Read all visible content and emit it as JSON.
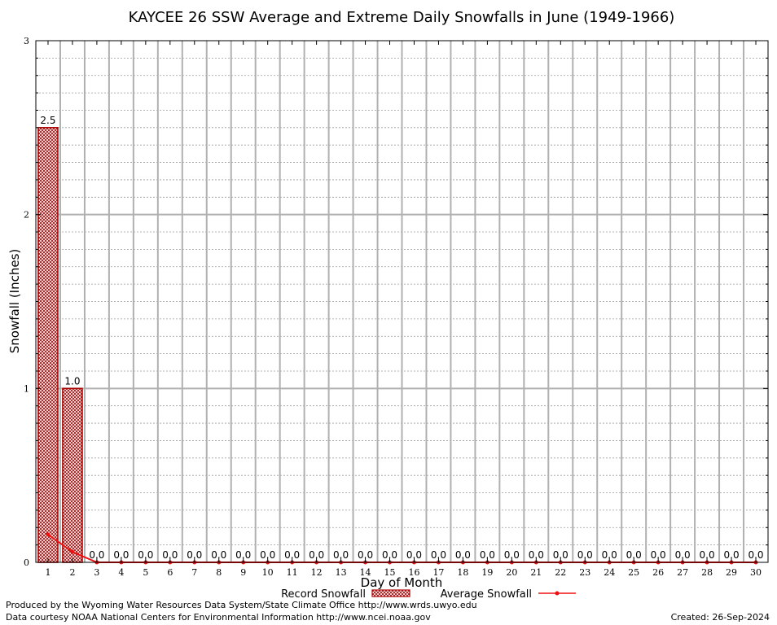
{
  "chart_data": {
    "type": "bar",
    "title": "KAYCEE 26 SSW Average and Extreme Daily Snowfalls in June (1949-1966)",
    "xlabel": "Day of Month",
    "ylabel": "Snowfall (Inches)",
    "ylim": [
      0,
      3
    ],
    "y_ticks": [
      "0",
      "1",
      "2",
      "3"
    ],
    "y_minor_step": 0.1,
    "grid": true,
    "categories": [
      "1",
      "2",
      "3",
      "4",
      "5",
      "6",
      "7",
      "8",
      "9",
      "10",
      "11",
      "12",
      "13",
      "14",
      "15",
      "16",
      "17",
      "18",
      "19",
      "20",
      "21",
      "22",
      "23",
      "24",
      "25",
      "26",
      "27",
      "28",
      "29",
      "30"
    ],
    "series": [
      {
        "name": "Record Snowfall",
        "type": "bar",
        "color": "#aa0000",
        "values": [
          2.5,
          1.0,
          0.0,
          0.0,
          0.0,
          0.0,
          0.0,
          0.0,
          0.0,
          0.0,
          0.0,
          0.0,
          0.0,
          0.0,
          0.0,
          0.0,
          0.0,
          0.0,
          0.0,
          0.0,
          0.0,
          0.0,
          0.0,
          0.0,
          0.0,
          0.0,
          0.0,
          0.0,
          0.0,
          0.0
        ],
        "labels": [
          "2.5",
          "1.0",
          "0.0",
          "0.0",
          "0.0",
          "0.0",
          "0.0",
          "0.0",
          "0.0",
          "0.0",
          "0.0",
          "0.0",
          "0.0",
          "0.0",
          "0.0",
          "0.0",
          "0.0",
          "0.0",
          "0.0",
          "0.0",
          "0.0",
          "0.0",
          "0.0",
          "0.0",
          "0.0",
          "0.0",
          "0.0",
          "0.0",
          "0.0",
          "0.0"
        ]
      },
      {
        "name": "Average Snowfall",
        "type": "line",
        "color": "#ee1111",
        "values": [
          0.16,
          0.06,
          0.0,
          0.0,
          0.0,
          0.0,
          0.0,
          0.0,
          0.0,
          0.0,
          0.0,
          0.0,
          0.0,
          0.0,
          0.0,
          0.0,
          0.0,
          0.0,
          0.0,
          0.0,
          0.0,
          0.0,
          0.0,
          0.0,
          0.0,
          0.0,
          0.0,
          0.0,
          0.0,
          0.0
        ]
      }
    ],
    "legend_position": "bottom-center"
  },
  "footer": {
    "produced_by": "Produced by the Wyoming Water Resources Data System/State Climate Office http://www.wrds.uwyo.edu",
    "courtesy": "Data courtesy NOAA National Centers for Environmental Information http://www.ncei.noaa.gov",
    "created": "Created:  26-Sep-2024"
  }
}
